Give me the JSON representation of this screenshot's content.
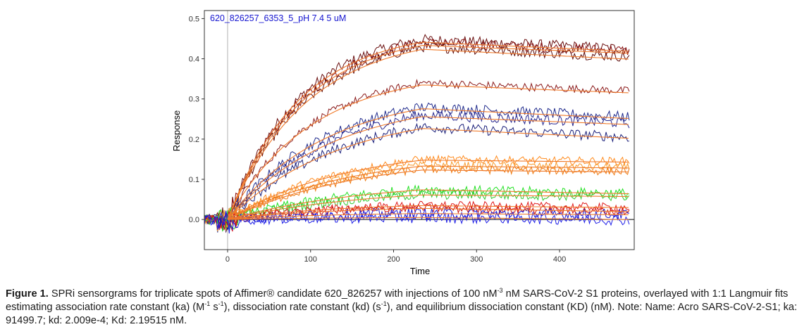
{
  "chart_data": {
    "type": "line",
    "title": "620_826257_6353_5_pH 7.4 5 uM",
    "xlabel": "Time",
    "ylabel": "Response",
    "xlim": [
      -28,
      490
    ],
    "ylim": [
      -0.075,
      0.52
    ],
    "x_ticks": [
      0,
      100,
      200,
      300,
      400
    ],
    "y_ticks": [
      0.0,
      0.1,
      0.2,
      0.3,
      0.4,
      0.5
    ],
    "injection_start": 0,
    "injection_end": 235,
    "grid": false,
    "legend": "none",
    "fit_color": "#f07a2a",
    "series": [
      {
        "color": "#6a0f0f",
        "plateau": 0.448,
        "end": 0.425,
        "k": 0.0115,
        "noise": 0.013
      },
      {
        "color": "#8a1212",
        "plateau": 0.44,
        "end": 0.42,
        "k": 0.011,
        "noise": 0.013
      },
      {
        "color": "#5c0a0a",
        "plateau": 0.43,
        "end": 0.405,
        "k": 0.0105,
        "noise": 0.013
      },
      {
        "color": "#8b1a1a",
        "plateau": 0.34,
        "end": 0.32,
        "k": 0.01,
        "noise": 0.01
      },
      {
        "color": "#1f2a8c",
        "plateau": 0.28,
        "end": 0.255,
        "k": 0.0085,
        "noise": 0.013
      },
      {
        "color": "#27278f",
        "plateau": 0.26,
        "end": 0.24,
        "k": 0.008,
        "noise": 0.013
      },
      {
        "color": "#1a1f7a",
        "plateau": 0.23,
        "end": 0.205,
        "k": 0.0075,
        "noise": 0.013
      },
      {
        "color": "#ff8a1c",
        "plateau": 0.15,
        "end": 0.145,
        "k": 0.007,
        "noise": 0.01
      },
      {
        "color": "#f79a2c",
        "plateau": 0.135,
        "end": 0.13,
        "k": 0.0068,
        "noise": 0.01
      },
      {
        "color": "#ee7a10",
        "plateau": 0.125,
        "end": 0.12,
        "k": 0.0065,
        "noise": 0.01
      },
      {
        "color": "#22e022",
        "plateau": 0.075,
        "end": 0.065,
        "k": 0.006,
        "noise": 0.012
      },
      {
        "color": "#33cc33",
        "plateau": 0.062,
        "end": 0.058,
        "k": 0.006,
        "noise": 0.012
      },
      {
        "color": "#e01a1a",
        "plateau": 0.035,
        "end": 0.03,
        "k": 0.008,
        "noise": 0.011
      },
      {
        "color": "#c81010",
        "plateau": 0.028,
        "end": 0.02,
        "k": 0.008,
        "noise": 0.011
      },
      {
        "color": "#1818d8",
        "plateau": 0.015,
        "end": 0.012,
        "k": 0.008,
        "noise": 0.014
      },
      {
        "color": "#2020e8",
        "plateau": 0.005,
        "end": 0.0,
        "k": 0.008,
        "noise": 0.014
      }
    ]
  },
  "caption": {
    "label": "Figure 1.",
    "part1": " SPRi sensorgrams for triplicate spots of Affimer® candidate 620_826257 with injections of 100 nM",
    "sup1": "-3",
    "part2": " nM SARS-CoV-2 S1 proteins, overlayed with 1:1 Langmuir fits estimating association rate constant (ka) (M",
    "sup2": "-1",
    "part3": " s",
    "sup3": "-1",
    "part4": "), dissociation rate constant (kd) (s",
    "sup4": "-1",
    "part5": "), and equilibrium dissociation constant (KD) (nM). Note: Name: Acro SARS-CoV-2-S1; ka: 91499.7; kd: 2.009e-4; Kd: 2.19515 nM."
  }
}
